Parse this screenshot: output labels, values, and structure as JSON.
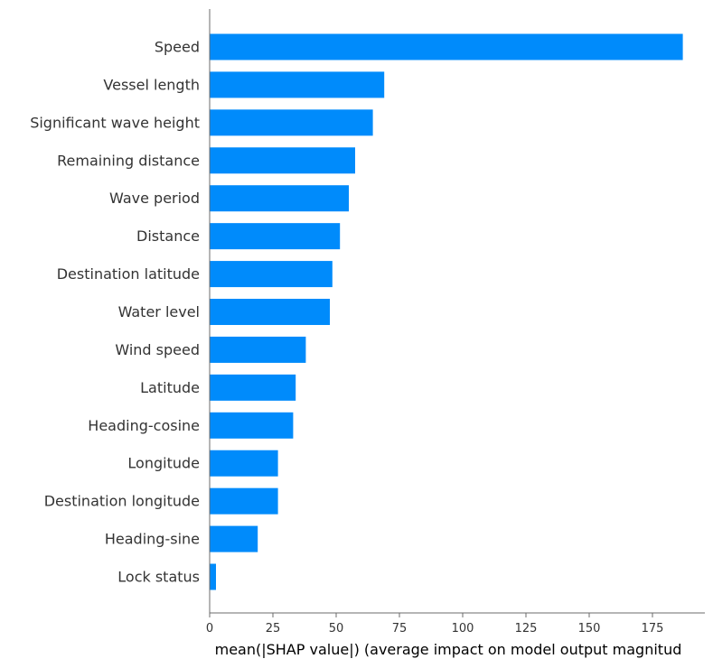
{
  "chart_data": {
    "type": "bar",
    "orientation": "horizontal",
    "categories": [
      "Speed",
      "Vessel length",
      "Significant wave height",
      "Remaining distance",
      "Wave period",
      "Distance",
      "Destination latitude",
      "Water level",
      "Wind speed",
      "Latitude",
      "Heading-cosine",
      "Longitude",
      "Destination longitude",
      "Heading-sine",
      "Lock status"
    ],
    "values": [
      187,
      69,
      64.5,
      57.5,
      55,
      51.5,
      48.5,
      47.5,
      38,
      34,
      33,
      27,
      27,
      19,
      2.5
    ],
    "xlabel": "mean(|SHAP value|) (average impact on model output magnitud",
    "ylabel": "",
    "xlim": [
      0,
      197
    ],
    "xticks": [
      0,
      25,
      50,
      75,
      100,
      125,
      150,
      175
    ],
    "grid": false,
    "bar_color": "#008bfb"
  }
}
